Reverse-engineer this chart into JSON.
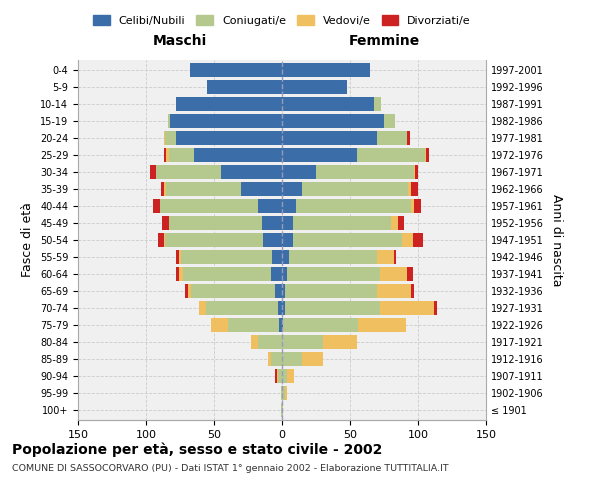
{
  "age_groups": [
    "100+",
    "95-99",
    "90-94",
    "85-89",
    "80-84",
    "75-79",
    "70-74",
    "65-69",
    "60-64",
    "55-59",
    "50-54",
    "45-49",
    "40-44",
    "35-39",
    "30-34",
    "25-29",
    "20-24",
    "15-19",
    "10-14",
    "5-9",
    "0-4"
  ],
  "birth_years": [
    "≤ 1901",
    "1902-1906",
    "1907-1911",
    "1912-1916",
    "1917-1921",
    "1922-1926",
    "1927-1931",
    "1932-1936",
    "1937-1941",
    "1942-1946",
    "1947-1951",
    "1952-1956",
    "1957-1961",
    "1962-1966",
    "1967-1971",
    "1972-1976",
    "1977-1981",
    "1982-1986",
    "1987-1991",
    "1992-1996",
    "1997-2001"
  ],
  "male_celibe": [
    0,
    0,
    0,
    0,
    0,
    2,
    3,
    5,
    8,
    7,
    14,
    15,
    18,
    30,
    45,
    65,
    78,
    82,
    78,
    55,
    68
  ],
  "male_coniugato": [
    1,
    1,
    3,
    8,
    18,
    38,
    53,
    62,
    65,
    67,
    72,
    68,
    72,
    55,
    48,
    18,
    8,
    2,
    0,
    0,
    0
  ],
  "male_vedovo": [
    0,
    0,
    1,
    2,
    5,
    12,
    5,
    2,
    3,
    2,
    1,
    0,
    0,
    2,
    0,
    2,
    1,
    0,
    0,
    0,
    0
  ],
  "male_divorziato": [
    0,
    0,
    1,
    0,
    0,
    0,
    0,
    2,
    2,
    2,
    4,
    5,
    5,
    2,
    4,
    2,
    0,
    0,
    0,
    0,
    0
  ],
  "fem_nubile": [
    0,
    0,
    0,
    0,
    0,
    1,
    2,
    2,
    4,
    5,
    8,
    8,
    10,
    15,
    25,
    55,
    70,
    75,
    68,
    48,
    65
  ],
  "fem_coniugata": [
    1,
    2,
    4,
    15,
    30,
    55,
    70,
    68,
    68,
    65,
    80,
    72,
    85,
    78,
    72,
    50,
    22,
    8,
    5,
    0,
    0
  ],
  "fem_vedova": [
    0,
    2,
    5,
    15,
    25,
    35,
    40,
    25,
    20,
    12,
    8,
    5,
    2,
    2,
    1,
    1,
    0,
    0,
    0,
    0,
    0
  ],
  "fem_divorziata": [
    0,
    0,
    0,
    0,
    0,
    0,
    2,
    2,
    4,
    2,
    8,
    5,
    5,
    5,
    2,
    2,
    2,
    0,
    0,
    0,
    0
  ],
  "c_cel": "#3b6ea8",
  "c_con": "#b5c98e",
  "c_ved": "#f0c060",
  "c_div": "#cc2222",
  "xlim": 150,
  "title": "Popolazione per età, sesso e stato civile - 2002",
  "subtitle": "COMUNE DI SASSOCORVARO (PU) - Dati ISTAT 1° gennaio 2002 - Elaborazione TUTTITALIA.IT",
  "ylabel_left": "Fasce di età",
  "ylabel_right": "Anni di nascita",
  "bg": "#ffffff",
  "ax_bg": "#f0f0f0",
  "grid_color": "#cccccc"
}
